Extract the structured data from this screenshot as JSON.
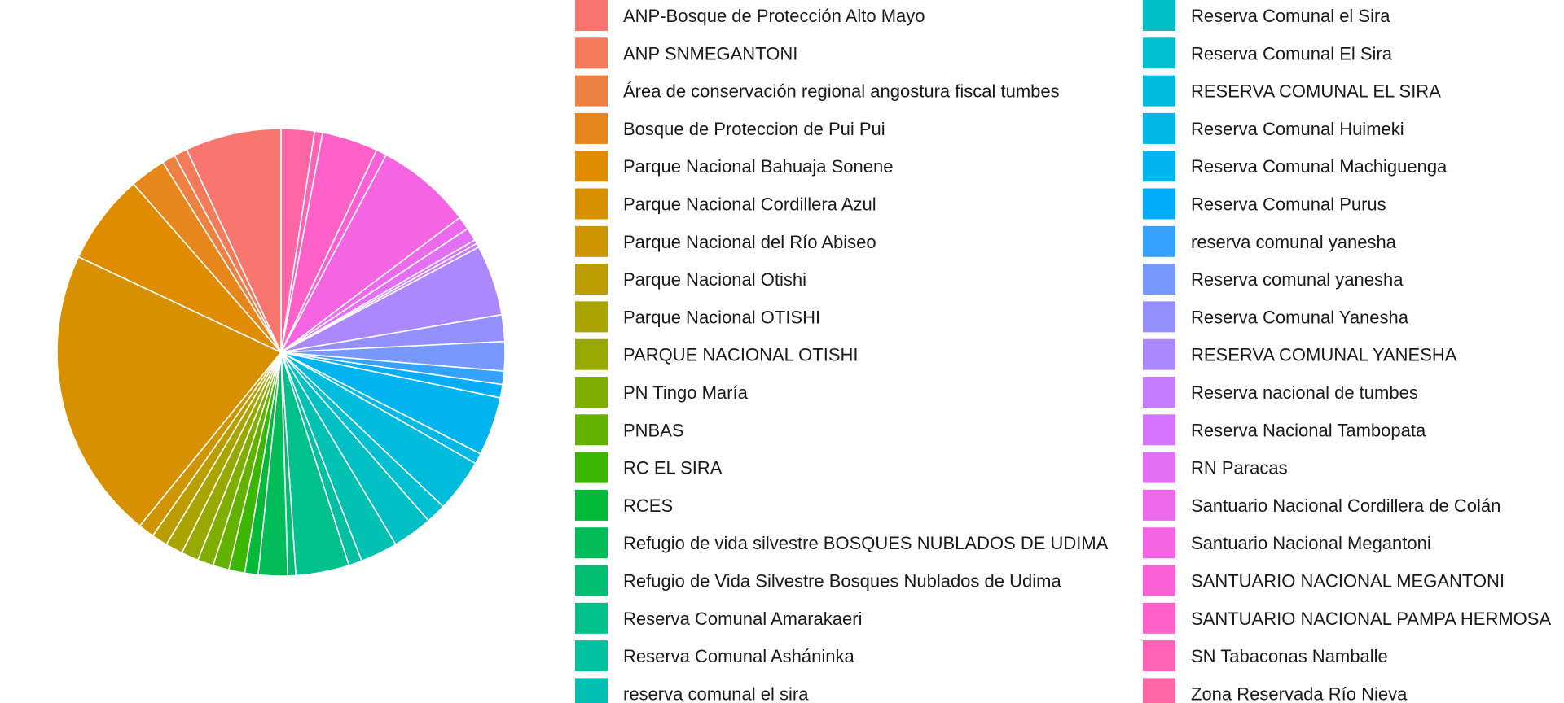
{
  "chart_data": {
    "type": "pie",
    "title": "",
    "legend_position": "right",
    "slice_border_color": "#ffffff",
    "slices": [
      {
        "label": "ANP-Bosque de Protección Alto Mayo",
        "value": 7.2,
        "color": "#F8766D"
      },
      {
        "label": "ANP SNMEGANTONI",
        "value": 1.0,
        "color": "#F37B59"
      },
      {
        "label": "Área de conservación regional angostura fiscal tumbes",
        "value": 1.0,
        "color": "#ED8141"
      },
      {
        "label": "Bosque de Proteccion de Pui Pui",
        "value": 2.7,
        "color": "#E7861B"
      },
      {
        "label": "Parque Nacional Bahuaja Sonene",
        "value": 6.8,
        "color": "#DF8C00"
      },
      {
        "label": "Parque Nacional Cordillera Azul",
        "value": 22.0,
        "color": "#D79000"
      },
      {
        "label": "Parque Nacional del Río Abiseo",
        "value": 1.2,
        "color": "#CE9500"
      },
      {
        "label": "Parque Nacional Otishi",
        "value": 1.2,
        "color": "#BB9D00"
      },
      {
        "label": "Parque Nacional OTISHI",
        "value": 1.3,
        "color": "#A9A400"
      },
      {
        "label": "PARQUE NACIONAL OTISHI",
        "value": 1.3,
        "color": "#96A900"
      },
      {
        "label": "PN Tingo María",
        "value": 1.2,
        "color": "#7FAE00"
      },
      {
        "label": "PNBAS",
        "value": 1.2,
        "color": "#64B200"
      },
      {
        "label": "RC EL SIRA",
        "value": 1.2,
        "color": "#3BB700"
      },
      {
        "label": "RCES",
        "value": 1.0,
        "color": "#00BA38"
      },
      {
        "label": "Refugio de vida silvestre BOSQUES NUBLADOS DE UDIMA",
        "value": 2.2,
        "color": "#00BC59"
      },
      {
        "label": "Refugio de Vida Silvestre Bosques Nublados de Udima",
        "value": 0.6,
        "color": "#00BE71"
      },
      {
        "label": "Reserva Comunal Amarakaeri",
        "value": 4.0,
        "color": "#00C08B"
      },
      {
        "label": "Reserva Comunal Asháninka",
        "value": 1.0,
        "color": "#00C0A0"
      },
      {
        "label": "reserva comunal el sira",
        "value": 2.8,
        "color": "#00C1B2"
      },
      {
        "label": "Reserva Comunal el Sira",
        "value": 3.0,
        "color": "#00C0C3"
      },
      {
        "label": "Reserva Comunal El Sira",
        "value": 1.5,
        "color": "#00BFD0"
      },
      {
        "label": "RESERVA COMUNAL EL SIRA",
        "value": 4.0,
        "color": "#00BCDC"
      },
      {
        "label": "Reserva Comunal Huimeki",
        "value": 0.8,
        "color": "#00B8E6"
      },
      {
        "label": "Reserva Comunal Machiguenga",
        "value": 4.4,
        "color": "#00B4EF"
      },
      {
        "label": "Reserva Comunal Purus",
        "value": 1.0,
        "color": "#00ADFA"
      },
      {
        "label": "reserva comunal yanesha",
        "value": 1.0,
        "color": "#35A2FF"
      },
      {
        "label": "Reserva comunal yanesha",
        "value": 2.2,
        "color": "#7799FF"
      },
      {
        "label": "Reserva Comunal Yanesha",
        "value": 2.0,
        "color": "#9590FF"
      },
      {
        "label": "RESERVA COMUNAL YANESHA",
        "value": 5.3,
        "color": "#AC88FF"
      },
      {
        "label": "Reserva nacional de tumbes",
        "value": 0.3,
        "color": "#C77CFF"
      },
      {
        "label": "Reserva Nacional Tambopata",
        "value": 0.3,
        "color": "#D674FD"
      },
      {
        "label": "RN Paracas",
        "value": 1.0,
        "color": "#E36FF4"
      },
      {
        "label": "Santuario Nacional Cordillera de Colán",
        "value": 1.0,
        "color": "#ED69EB"
      },
      {
        "label": "Santuario Nacional Megantoni",
        "value": 7.2,
        "color": "#F564E3"
      },
      {
        "label": "SANTUARIO NACIONAL MEGANTONI",
        "value": 0.8,
        "color": "#FB61D7"
      },
      {
        "label": "SANTUARIO NACIONAL PAMPA HERMOSA",
        "value": 4.2,
        "color": "#FF61C9"
      },
      {
        "label": "SN Tabaconas Namballe",
        "value": 0.6,
        "color": "#FF63B6"
      },
      {
        "label": "Zona Reservada Río Nieva",
        "value": 2.5,
        "color": "#FF67A4"
      }
    ]
  }
}
